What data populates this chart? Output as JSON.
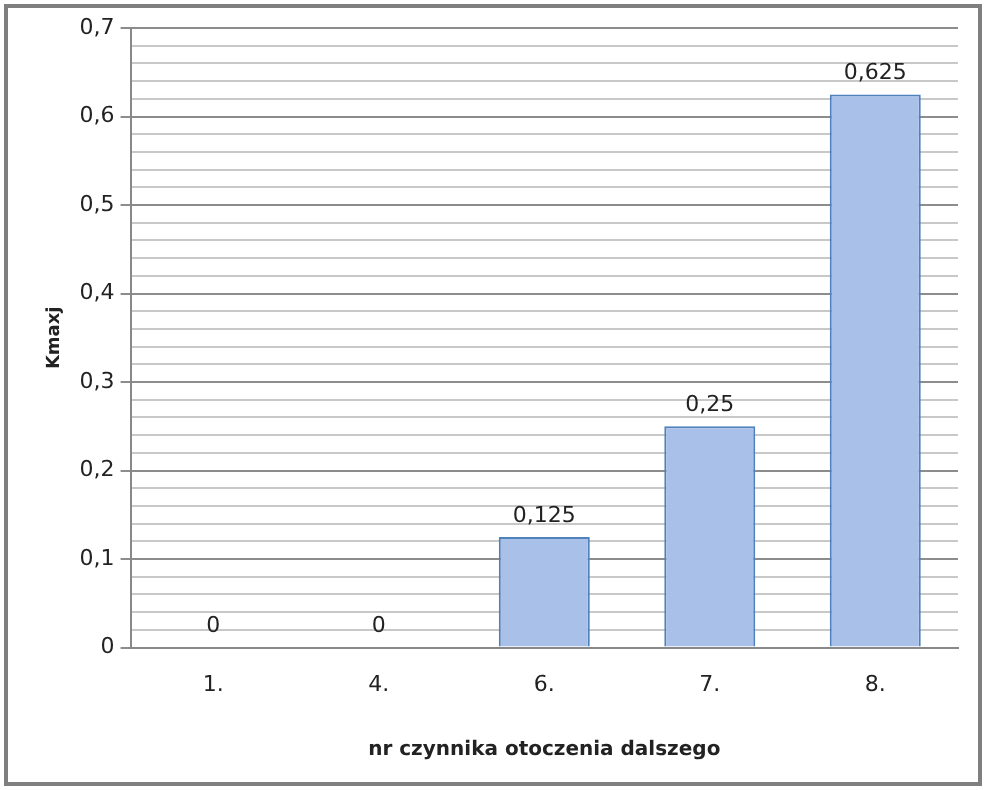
{
  "chart_data": {
    "type": "bar",
    "xlabel": "nr czynnika otoczenia dalszego",
    "ylabel": "Kmaxj",
    "categories": [
      "1.",
      "4.",
      "6.",
      "7.",
      "8."
    ],
    "series": [
      {
        "color": "#a9c1e8",
        "values": [
          0,
          0,
          0.125,
          0.25,
          0.625
        ],
        "value_labels": [
          "0",
          "0",
          "0,125",
          "0,25",
          "0,625"
        ]
      }
    ],
    "ylim": [
      0,
      0.7
    ],
    "yticks": [
      {
        "value": 0,
        "label": "0"
      },
      {
        "value": 0.02,
        "label": null
      },
      {
        "value": 0.04,
        "label": null
      },
      {
        "value": 0.06,
        "label": null
      },
      {
        "value": 0.08,
        "label": null
      },
      {
        "value": 0.1,
        "label": "0,1"
      },
      {
        "value": 0.12,
        "label": null
      },
      {
        "value": 0.14,
        "label": null
      },
      {
        "value": 0.16,
        "label": null
      },
      {
        "value": 0.18,
        "label": null
      },
      {
        "value": 0.2,
        "label": "0,2"
      },
      {
        "value": 0.22,
        "label": null
      },
      {
        "value": 0.24,
        "label": null
      },
      {
        "value": 0.26,
        "label": null
      },
      {
        "value": 0.28,
        "label": null
      },
      {
        "value": 0.3,
        "label": "0,3"
      },
      {
        "value": 0.32,
        "label": null
      },
      {
        "value": 0.34,
        "label": null
      },
      {
        "value": 0.36,
        "label": null
      },
      {
        "value": 0.38,
        "label": null
      },
      {
        "value": 0.4,
        "label": "0,4"
      },
      {
        "value": 0.42,
        "label": null
      },
      {
        "value": 0.44,
        "label": null
      },
      {
        "value": 0.46,
        "label": null
      },
      {
        "value": 0.48,
        "label": null
      },
      {
        "value": 0.5,
        "label": "0,5"
      },
      {
        "value": 0.52,
        "label": null
      },
      {
        "value": 0.54,
        "label": null
      },
      {
        "value": 0.56,
        "label": null
      },
      {
        "value": 0.58,
        "label": null
      },
      {
        "value": 0.6,
        "label": "0,6"
      },
      {
        "value": 0.62,
        "label": null
      },
      {
        "value": 0.64,
        "label": null
      },
      {
        "value": 0.66,
        "label": null
      },
      {
        "value": 0.68,
        "label": null
      },
      {
        "value": 0.7,
        "label": "0,7"
      }
    ],
    "grid": "y",
    "legend": false
  }
}
